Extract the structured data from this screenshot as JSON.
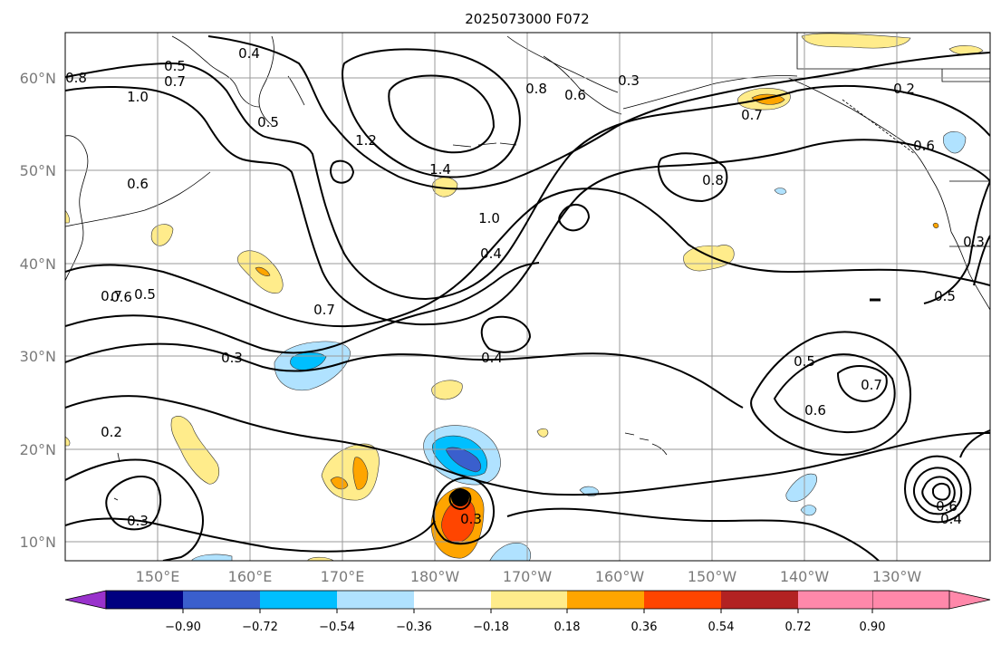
{
  "title": "2025073000 F072",
  "map": {
    "lat_labels": [
      "60°N",
      "50°N",
      "40°N",
      "30°N",
      "20°N",
      "10°N"
    ],
    "lon_labels": [
      "150°E",
      "160°E",
      "170°E",
      "180°W",
      "170°W",
      "160°W",
      "150°W",
      "140°W",
      "130°W"
    ],
    "contour_labels": [
      "0.4",
      "0.5",
      "0.7",
      "0.8",
      "1.0",
      "0.5",
      "0.6",
      "1.2",
      "1.4",
      "0.8",
      "0.6",
      "0.3",
      "0.2",
      "0.7",
      "0.8",
      "0.6",
      "0.5",
      "0.7",
      "0.6",
      "0.7",
      "1.0",
      "0.4",
      "0.4",
      "0.3",
      "0.5",
      "0.7",
      "0.6",
      "0.2",
      "0.3",
      "0.3",
      "0.5",
      "0.3",
      "0.6",
      "0.4"
    ]
  },
  "colorbar": {
    "ticks": [
      "−0.90",
      "−0.72",
      "−0.54",
      "−0.36",
      "−0.18",
      "0.18",
      "0.36",
      "0.54",
      "0.72",
      "0.90"
    ],
    "colors": [
      "#9932cc",
      "#000080",
      "#3a5fcd",
      "#00bfff",
      "#b0e2ff",
      "#ffffff",
      "#ffec8b",
      "#ffa500",
      "#ff4500",
      "#b22222",
      "#ff88aa"
    ]
  }
}
